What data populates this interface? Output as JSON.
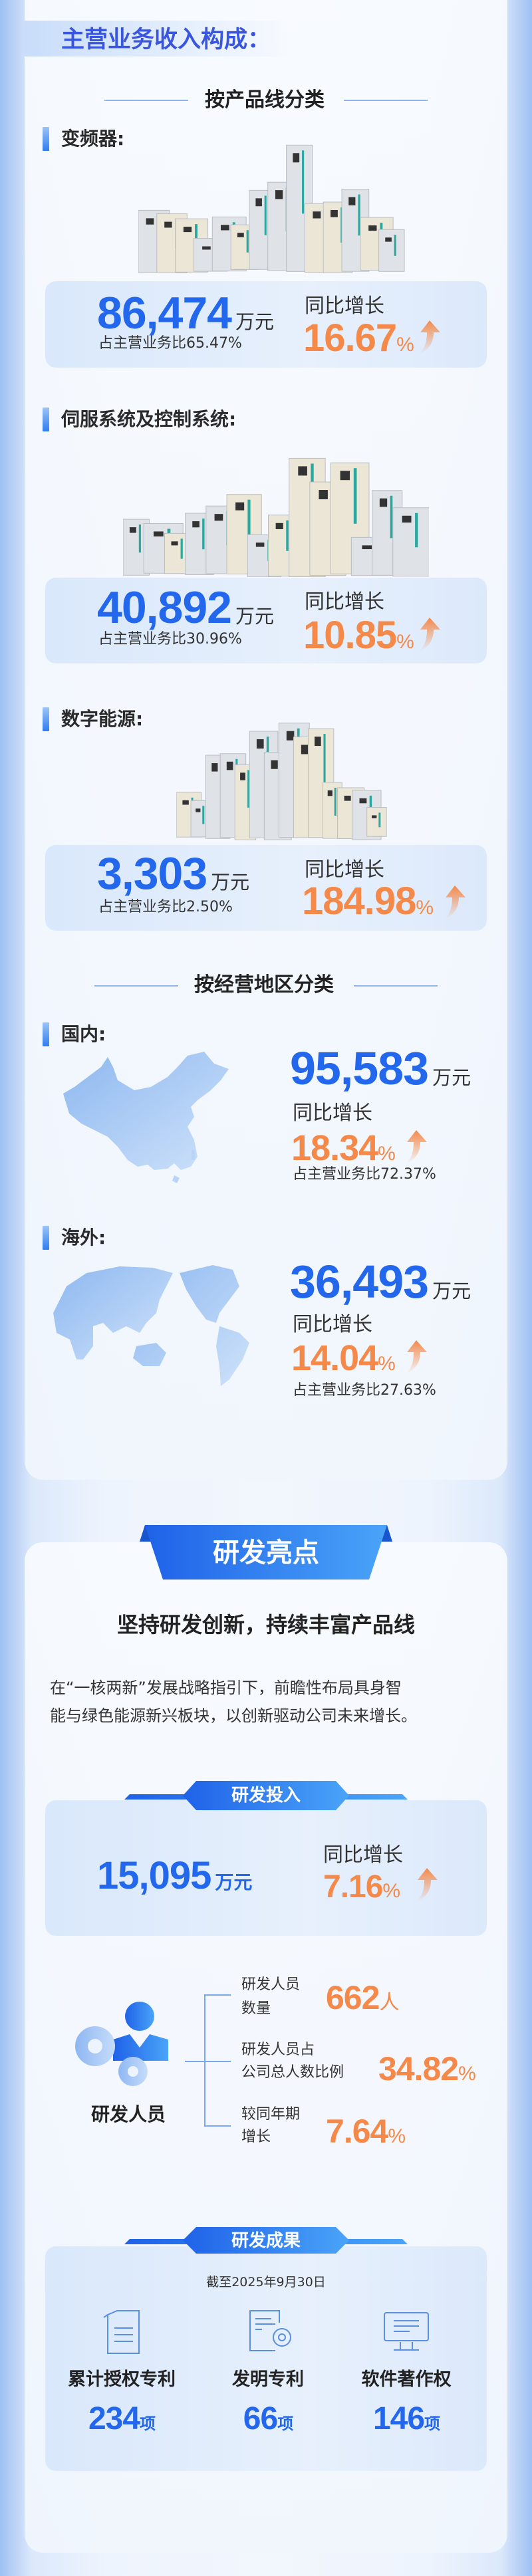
{
  "colors": {
    "accent_blue": "#2267ec",
    "accent_orange": "#f4894a",
    "title_blue": "#3a56de"
  },
  "revenue": {
    "title": "主营业务收入构成：",
    "by_product_title": "按产品线分类",
    "products": [
      {
        "name": "变频器:",
        "amount": "86,474",
        "unit": "万元",
        "share": "占主营业务比65.47%",
        "yoy_label": "同比增长",
        "yoy": "16.67",
        "pct": "%"
      },
      {
        "name": "伺服系统及控制系统:",
        "amount": "40,892",
        "unit": "万元",
        "share": "占主营业务比30.96%",
        "yoy_label": "同比增长",
        "yoy": "10.85",
        "pct": "%"
      },
      {
        "name": "数字能源:",
        "amount": "3,303",
        "unit": "万元",
        "share": "占主营业务比2.50%",
        "yoy_label": "同比增长",
        "yoy": "184.98",
        "pct": "%"
      }
    ],
    "by_region_title": "按经营地区分类",
    "regions": [
      {
        "name": "国内:",
        "amount": "95,583",
        "unit": "万元",
        "yoy_label": "同比增长",
        "yoy": "18.34",
        "pct": "%",
        "share": "占主营业务比72.37%"
      },
      {
        "name": "海外:",
        "amount": "36,493",
        "unit": "万元",
        "yoy_label": "同比增长",
        "yoy": "14.04",
        "pct": "%",
        "share": "占主营业务比27.63%"
      }
    ]
  },
  "rd": {
    "banner": "研发亮点",
    "headline": "坚持研发创新，持续丰富产品线",
    "paragraph": [
      "在“一核两新”发展战略指引下，前瞻性布局具身智",
      "能与绿色能源新兴板块，以创新驱动公司未来增长。"
    ],
    "investment": {
      "banner": "研发投入",
      "amount": "15,095",
      "unit": "万元",
      "yoy_label": "同比增长",
      "yoy": "7.16",
      "pct": "%"
    },
    "staff": {
      "label": "研发人员",
      "items": [
        {
          "label": [
            "研发人员",
            "数量"
          ],
          "value": "662",
          "unit": "人"
        },
        {
          "label": [
            "研发人员占",
            "公司总人数比例"
          ],
          "value": "34.82",
          "unit": "%"
        },
        {
          "label": [
            "较同年期",
            "增长"
          ],
          "value": "7.64",
          "unit": "%"
        }
      ]
    },
    "results": {
      "banner": "研发成果",
      "date": "截至2025年9月30日",
      "items": [
        {
          "label": "累计授权专利",
          "value": "234",
          "unit": "项",
          "icon": "documents-icon"
        },
        {
          "label": "发明专利",
          "value": "66",
          "unit": "项",
          "icon": "document-gear-icon"
        },
        {
          "label": "软件著作权",
          "value": "146",
          "unit": "项",
          "icon": "monitor-icon"
        }
      ]
    }
  }
}
